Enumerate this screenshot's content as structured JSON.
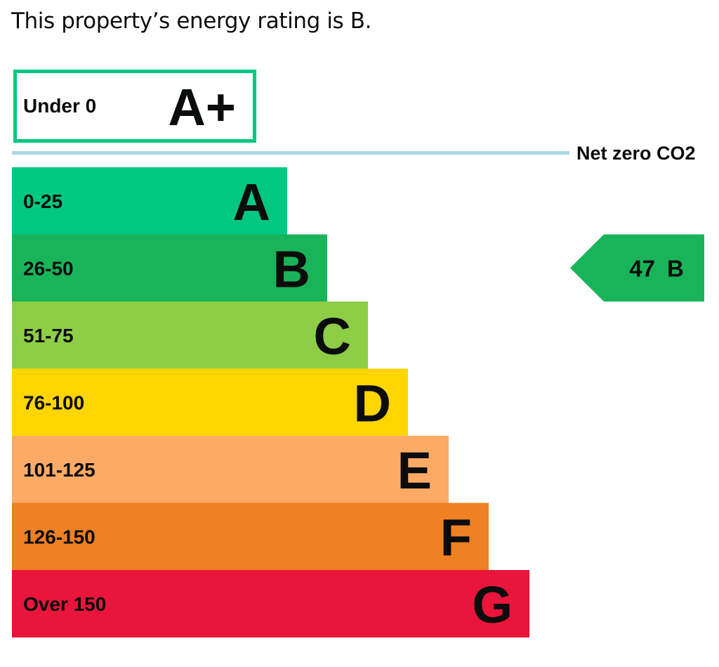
{
  "heading": "This property’s energy rating is B.",
  "chart_data": {
    "type": "bar",
    "title": "",
    "categories": [
      "A+",
      "A",
      "B",
      "C",
      "D",
      "E",
      "F",
      "G"
    ],
    "ranges": [
      "Under 0",
      "0-25",
      "26-50",
      "51-75",
      "76-100",
      "101-125",
      "126-150",
      "Over 150"
    ],
    "colors": [
      "#00c781",
      "#00c781",
      "#19b459",
      "#8dce46",
      "#ffd500",
      "#fcaa65",
      "#ef8023",
      "#e9153b"
    ],
    "net_zero_label": "Net zero CO2",
    "net_zero_line_color": "#a8d8e8",
    "current_rating": {
      "value": 47,
      "letter": "B",
      "color": "#19b459"
    }
  }
}
